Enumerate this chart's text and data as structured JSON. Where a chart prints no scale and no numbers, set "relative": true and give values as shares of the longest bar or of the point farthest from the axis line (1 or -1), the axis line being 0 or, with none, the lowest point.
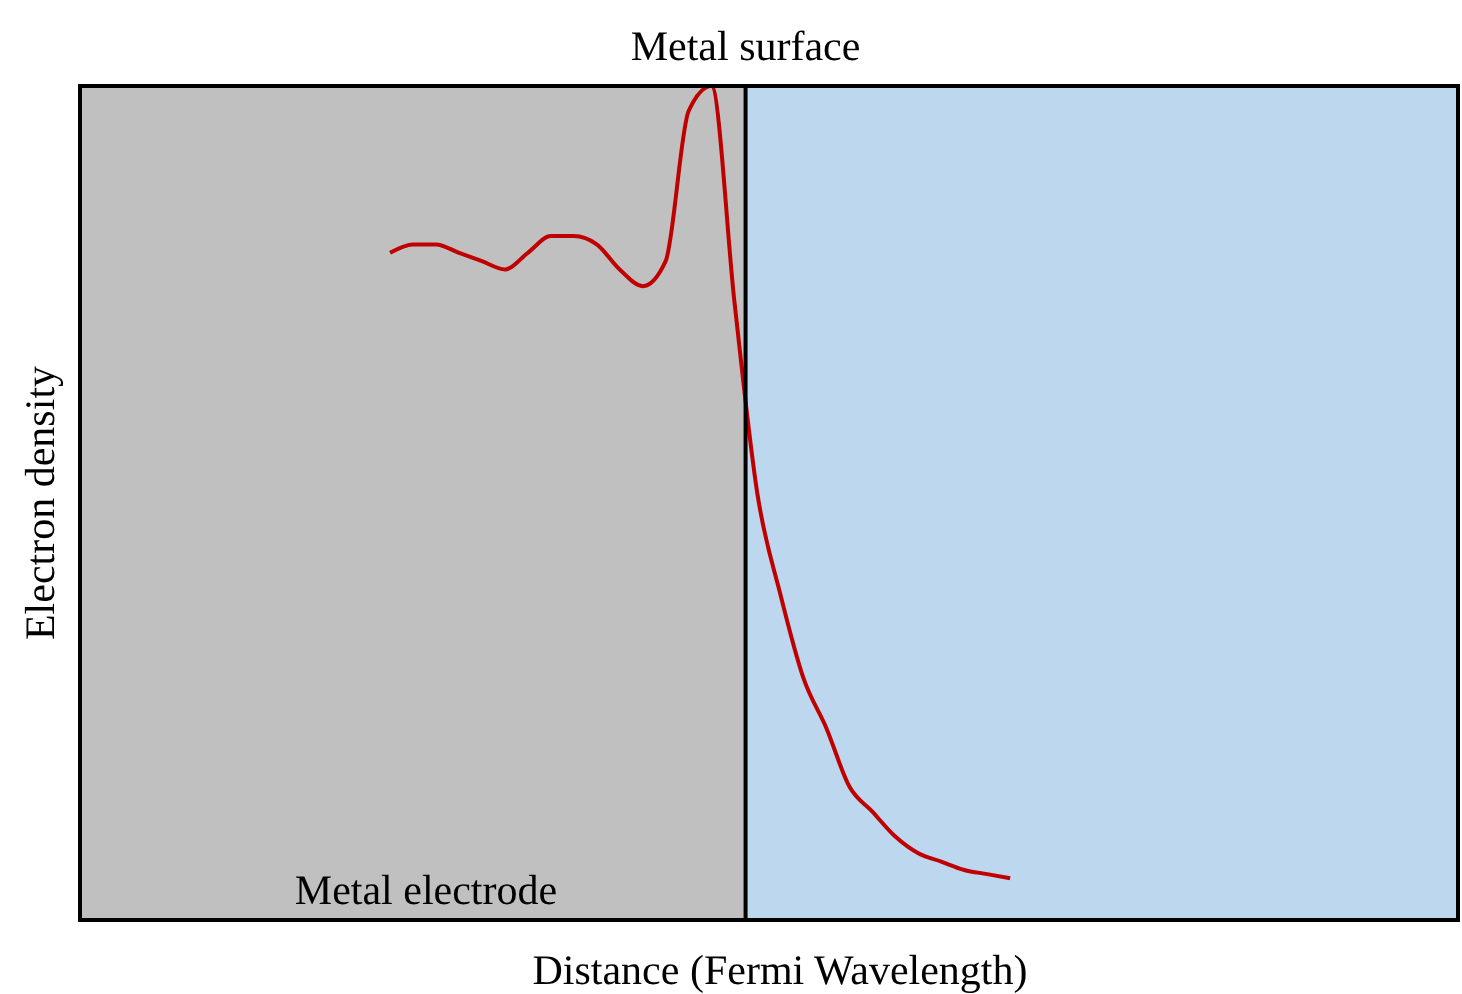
{
  "chart_data": {
    "type": "line",
    "title": "Metal surface",
    "xlabel": "Distance (Fermi Wavelength)",
    "ylabel": "Electron density",
    "annotations": [
      "Metal electrode"
    ],
    "relative": true,
    "categories": [
      null,
      null,
      null,
      null,
      null,
      null,
      null,
      null,
      null,
      null,
      null,
      null,
      null,
      null,
      null,
      null,
      null,
      null,
      null,
      null,
      null,
      null,
      null,
      null,
      null,
      null,
      null,
      null,
      null,
      null,
      null,
      null,
      null,
      null,
      null,
      null,
      null,
      null,
      null,
      null,
      null,
      null,
      null,
      null,
      null,
      null,
      null,
      null,
      null,
      null,
      null,
      null,
      null,
      null,
      null,
      null,
      null,
      null,
      null,
      null
    ],
    "series": [
      {
        "color": "#c00000",
        "values": [
          null,
          null,
          null,
          null,
          null,
          null,
          null,
          null,
          null,
          null,
          null,
          null,
          null,
          0.8,
          0.81,
          0.81,
          0.8,
          0.79,
          0.78,
          0.8,
          0.82,
          0.82,
          0.81,
          0.78,
          0.76,
          0.79,
          0.97,
          1,
          0.74,
          0.51,
          0.39,
          0.29,
          0.23,
          0.16,
          0.13,
          0.1,
          0.08,
          0.07,
          0.06,
          0.055,
          0.05,
          null,
          null,
          null,
          null,
          null,
          null,
          null,
          null,
          null,
          null,
          null,
          null,
          null,
          null,
          null,
          null,
          null,
          null,
          null
        ]
      }
    ]
  }
}
